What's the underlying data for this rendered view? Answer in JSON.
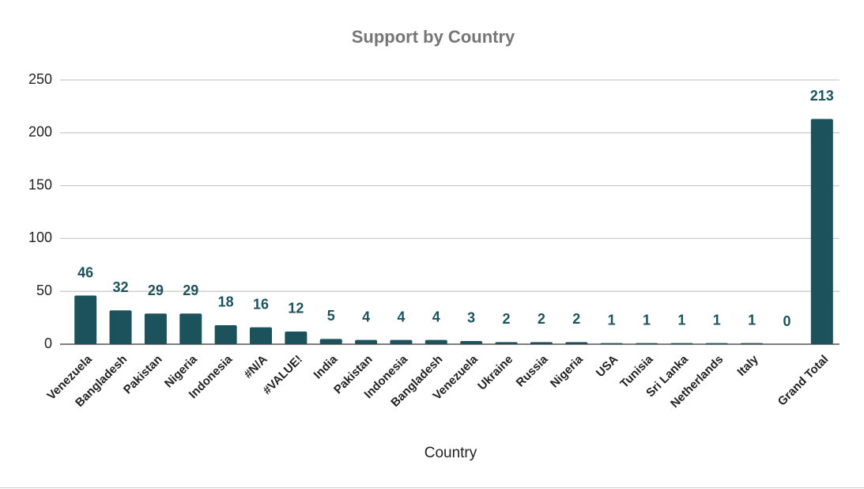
{
  "chart_data": {
    "type": "bar",
    "title": "Support by Country",
    "x_label": "Country",
    "categories": [
      "Venezuela",
      "Bangladesh",
      "Pakistan",
      "Nigeria",
      "Indonesia",
      "#N/A",
      "#VALUE!",
      "India",
      "Pakistan",
      "Indonesia",
      "Bangladesh",
      "Venezuela",
      "Ukraine",
      "Russia",
      "Nigeria",
      "USA",
      "Tunisia",
      "Sri Lanka",
      "Netherlands",
      "Italy",
      null,
      "Grand Total"
    ],
    "values": [
      46,
      32,
      29,
      29,
      18,
      16,
      12,
      5,
      4,
      4,
      4,
      3,
      2,
      2,
      2,
      1,
      1,
      1,
      1,
      1,
      0,
      213
    ],
    "color": "#1b525c",
    "ylim": [
      0,
      250
    ],
    "yticks": [
      0,
      50,
      100,
      150,
      200,
      250
    ],
    "grid": true
  }
}
